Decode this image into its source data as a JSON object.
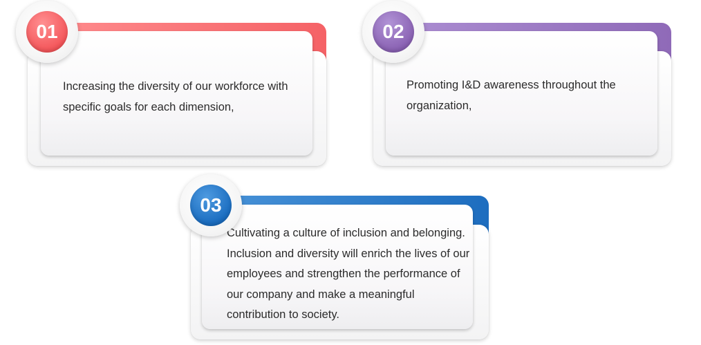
{
  "cards": [
    {
      "number": "01",
      "text": "Increasing the diversity of our workforce with specific goals for each dimension,",
      "color_light": "#ff8a8a",
      "color_dark": "#f0595c"
    },
    {
      "number": "02",
      "text": "Promoting I&D awareness throughout the organization,",
      "color_light": "#a98bd0",
      "color_dark": "#8c64b4"
    },
    {
      "number": "03",
      "text": "Cultivating a culture of inclusion and belonging. Inclusion and diversity will enrich the lives of our employees and strengthen the performance of our company and make a meaningful contribution to society.",
      "color_light": "#3f8fd8",
      "color_dark": "#1a6cbd"
    }
  ]
}
